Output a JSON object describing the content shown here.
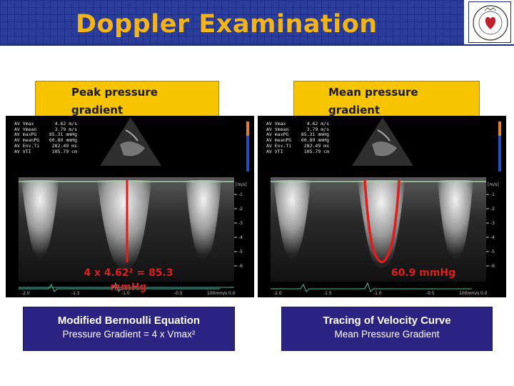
{
  "slide": {
    "title": "Doppler Examination",
    "accent_color": "#f2b418",
    "header_color": "#2c3e9b"
  },
  "left": {
    "label_line1": "Peak pressure",
    "label_line2": "gradient",
    "result_line1": "4 x 4.62² = 85.3",
    "result_line2": "mmHg",
    "caption_title": "Modified Bernoulli Equation",
    "caption_sub": "Pressure Gradient = 4 x Vmax²",
    "readout": [
      {
        "k": "AV Vmax",
        "v": "4.62 m/s"
      },
      {
        "k": "AV Vmean",
        "v": "3.79 m/s"
      },
      {
        "k": "AV maxPG",
        "v": "85.31 mmHg"
      },
      {
        "k": "AV meanPG",
        "v": "60.89 mmHg"
      },
      {
        "k": "AV Env.Ti",
        "v": "282.49 ms"
      },
      {
        "k": "AV VTI",
        "v": "105.79 cm"
      }
    ],
    "x_ticks": [
      "-2.0",
      "-1.5",
      "-1.0",
      "-0.5",
      "0.0"
    ],
    "sweep": "100mm/s"
  },
  "right": {
    "label_line1": "Mean pressure",
    "label_line2": "gradient",
    "result_line1": "60.9 mmHg",
    "caption_title": "Tracing of Velocity Curve",
    "caption_sub": "Mean Pressure Gradient",
    "readout": [
      {
        "k": "AV Vmax",
        "v": "4.62 m/s"
      },
      {
        "k": "AV Vmean",
        "v": "3.79 m/s"
      },
      {
        "k": "AV maxPG",
        "v": "85.31 mmHg"
      },
      {
        "k": "AV meanPG",
        "v": "60.89 mmHg"
      },
      {
        "k": "AV Env.Ti",
        "v": "282.49 ms"
      },
      {
        "k": "AV VTI",
        "v": "105.79 cm"
      }
    ],
    "x_ticks": [
      "-2.0",
      "-1.5",
      "-1.0",
      "-0.5",
      "0.0"
    ],
    "sweep": "100mm/s"
  },
  "doppler_scale": [
    "-1",
    "-2",
    "-3",
    "-4",
    "-5",
    "-6"
  ],
  "scale_unit": "[m/s]"
}
